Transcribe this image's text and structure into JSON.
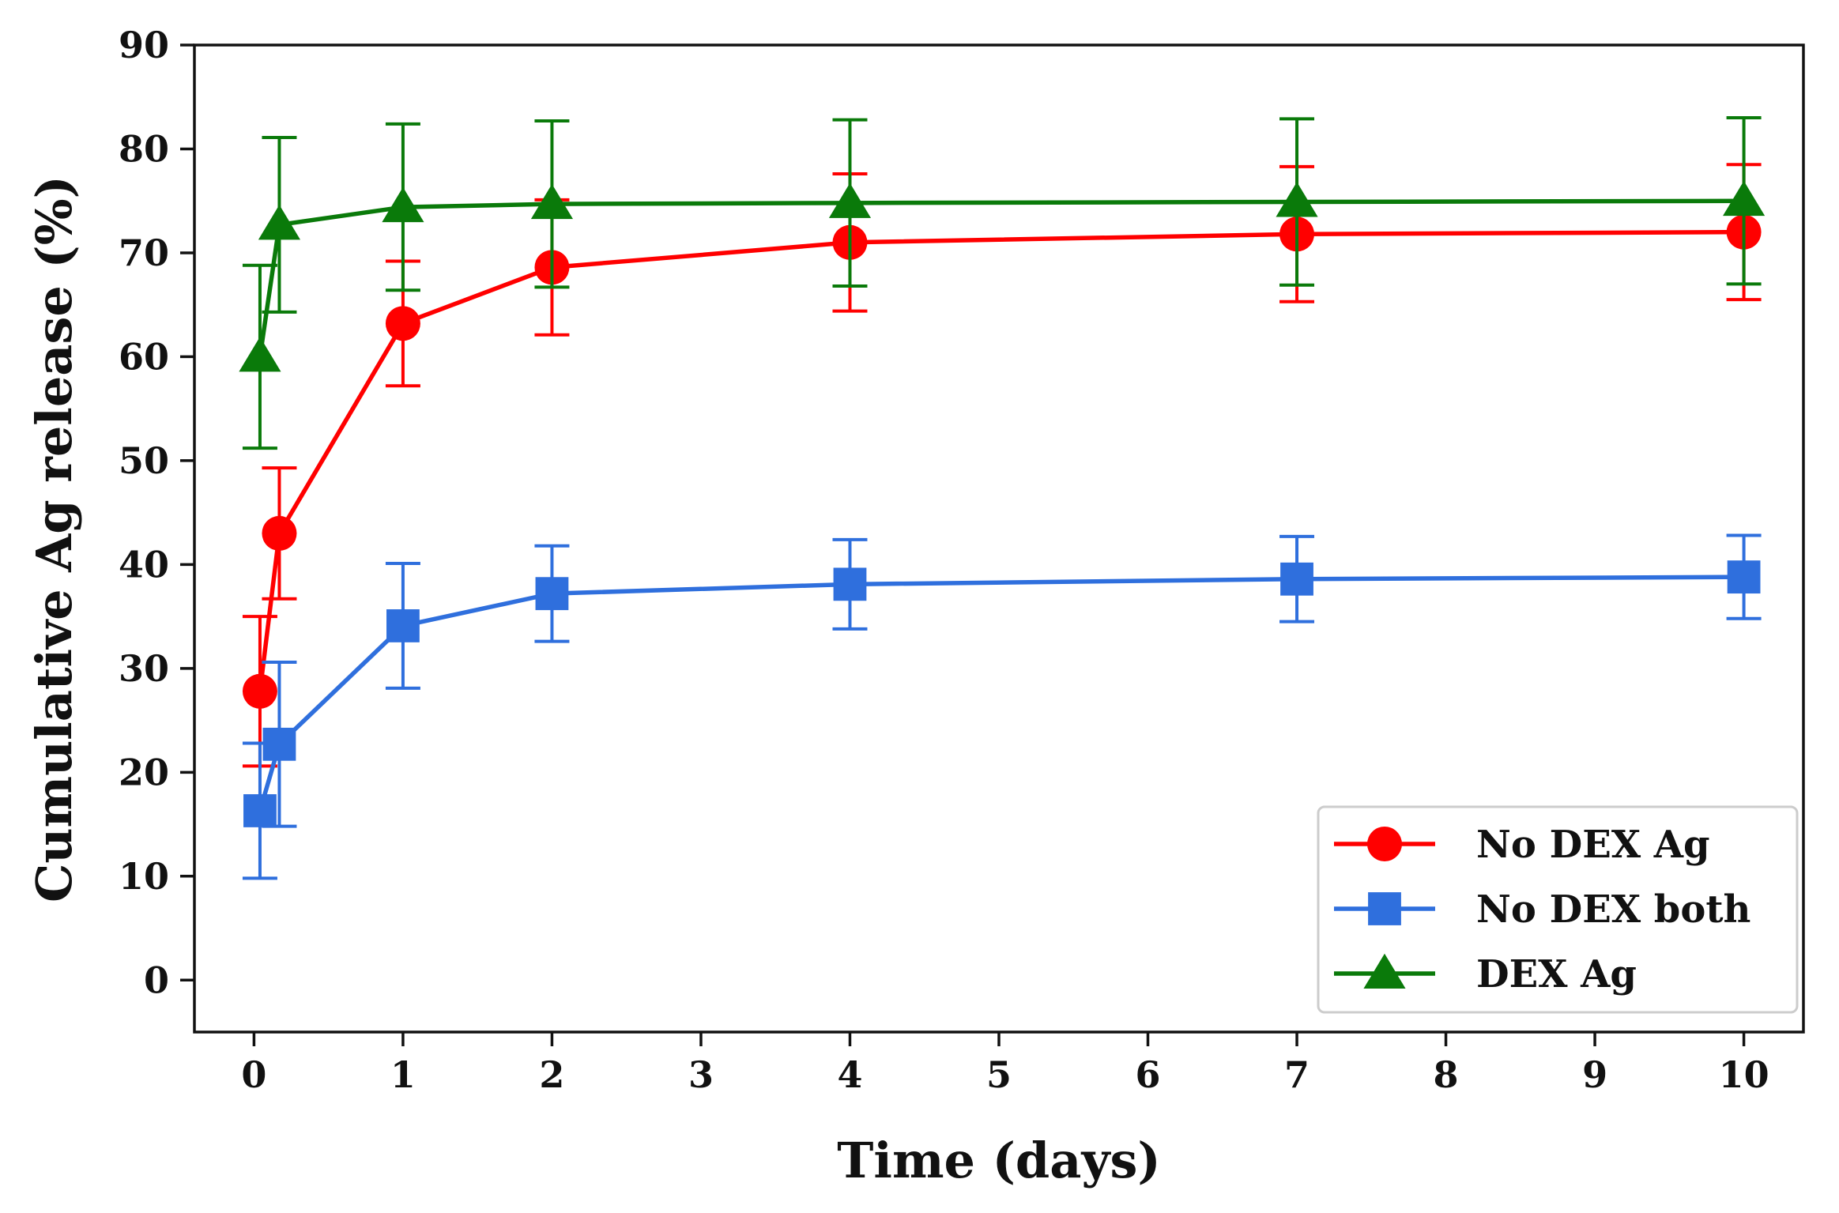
{
  "chart_data": {
    "type": "line",
    "title": "",
    "xlabel": "Time (days)",
    "ylabel": "Cumulative Ag release (%)",
    "xlim": [
      -0.4,
      10.4
    ],
    "ylim": [
      -5,
      90
    ],
    "xticks": [
      "0",
      "1",
      "2",
      "3",
      "4",
      "5",
      "6",
      "7",
      "8",
      "9",
      "10"
    ],
    "yticks": [
      "0",
      "10",
      "20",
      "30",
      "40",
      "50",
      "60",
      "70",
      "80",
      "90"
    ],
    "grid": false,
    "legend_position": "bottom-right",
    "series": [
      {
        "name": "No DEX Ag",
        "color": "#ff0000",
        "marker": "circle",
        "x": [
          0.04,
          0.17,
          1,
          2,
          4,
          7,
          10
        ],
        "y": [
          27.8,
          43.0,
          63.2,
          68.6,
          71.0,
          71.8,
          72.0
        ],
        "err": [
          7.2,
          6.3,
          6.0,
          6.5,
          6.6,
          6.5,
          6.5
        ]
      },
      {
        "name": "No DEX both",
        "color": "#2f6fdd",
        "marker": "square",
        "x": [
          0.04,
          0.17,
          1,
          2,
          4,
          7,
          10
        ],
        "y": [
          16.3,
          22.7,
          34.1,
          37.2,
          38.1,
          38.6,
          38.8
        ],
        "err": [
          6.5,
          7.9,
          6.0,
          4.6,
          4.3,
          4.1,
          4.0
        ]
      },
      {
        "name": "DEX Ag",
        "color": "#0a7a0a",
        "marker": "triangle",
        "x": [
          0.04,
          0.17,
          1,
          2,
          4,
          7,
          10
        ],
        "y": [
          60.0,
          72.7,
          74.4,
          74.7,
          74.8,
          74.9,
          75.0
        ],
        "err": [
          8.8,
          8.4,
          8.0,
          8.0,
          8.0,
          8.0,
          8.0
        ]
      }
    ]
  }
}
